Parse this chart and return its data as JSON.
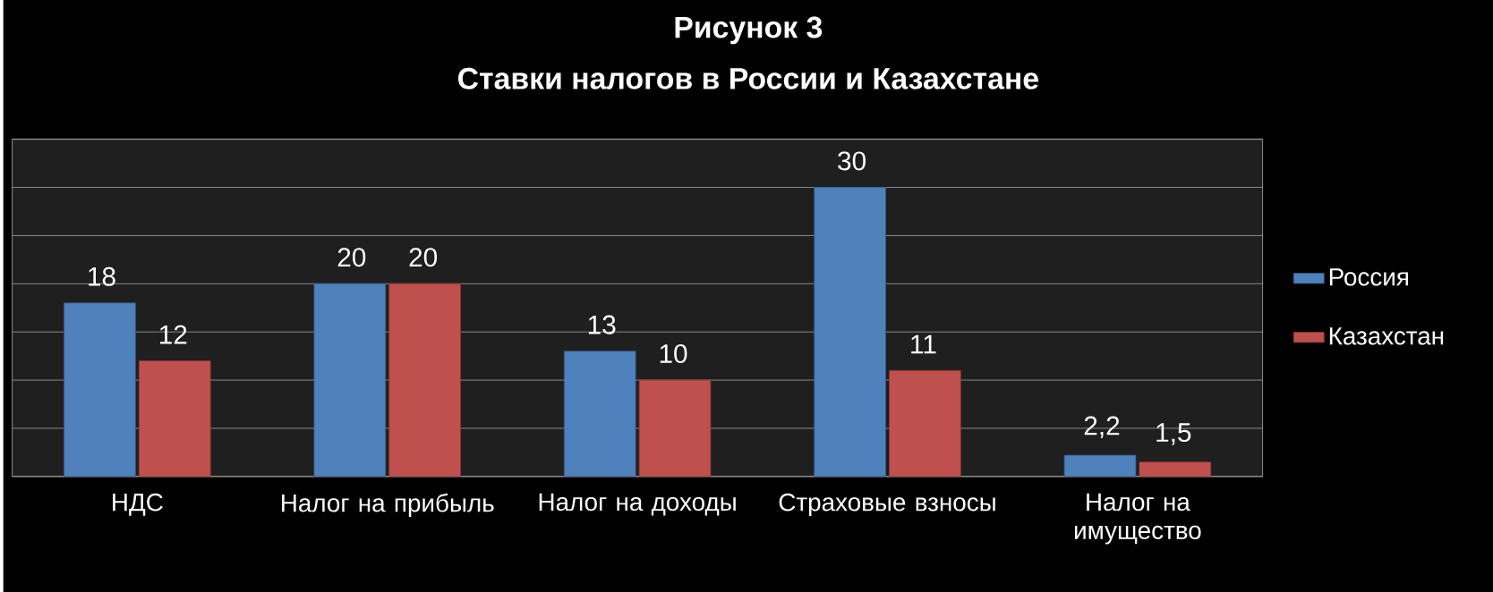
{
  "chart_data": {
    "type": "bar",
    "title": "Рисунок 3",
    "subtitle": "Ставки налогов в России и Казахстане",
    "categories": [
      "НДС",
      "Налог на прибыль",
      "Налог на доходы",
      "Страховые взносы",
      "Налог на имущество"
    ],
    "series": [
      {
        "name": "Россия",
        "color": "#4f81bd",
        "values": [
          18,
          20,
          13,
          30,
          2.2
        ],
        "value_labels": [
          "18",
          "20",
          "13",
          "30",
          "2,2"
        ]
      },
      {
        "name": "Казахстан",
        "color": "#c0504d",
        "values": [
          12,
          20,
          10,
          11,
          1.5
        ],
        "value_labels": [
          "12",
          "20",
          "10",
          "11",
          "1,5"
        ]
      }
    ],
    "ylim": [
      0,
      35
    ],
    "yticks": [
      {
        "value": 0,
        "label": null
      },
      {
        "value": 5,
        "label": null
      },
      {
        "value": 10,
        "label": null
      },
      {
        "value": 15,
        "label": null
      },
      {
        "value": 20,
        "label": null
      },
      {
        "value": 25,
        "label": null
      },
      {
        "value": 30,
        "label": null
      },
      {
        "value": 35,
        "label": null
      }
    ],
    "tick_labels": "x",
    "grid": "y",
    "legend": "right"
  }
}
